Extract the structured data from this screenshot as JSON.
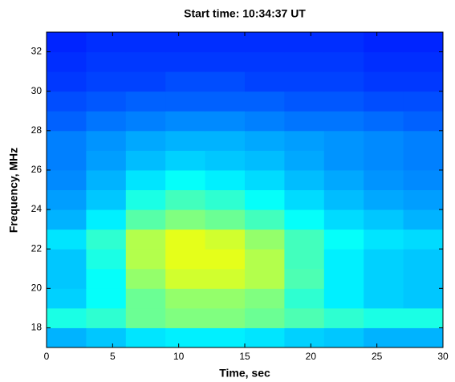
{
  "chart_data": {
    "type": "heatmap",
    "title": "Start time: 10:34:37 UT",
    "xlabel": "Time, sec",
    "ylabel": "Frequency, MHz",
    "colormap": "jet",
    "clim": [
      0,
      1
    ],
    "x_edges": [
      0,
      3,
      6,
      9,
      12,
      15,
      18,
      21,
      24,
      27,
      30
    ],
    "y_edges": [
      17,
      18,
      19,
      20,
      21,
      22,
      23,
      24,
      25,
      26,
      27,
      28,
      29,
      30,
      31,
      32,
      33
    ],
    "z": [
      [
        0.3,
        0.32,
        0.35,
        0.36,
        0.36,
        0.35,
        0.33,
        0.32,
        0.3,
        0.3
      ],
      [
        0.4,
        0.42,
        0.48,
        0.5,
        0.5,
        0.48,
        0.45,
        0.42,
        0.4,
        0.4
      ],
      [
        0.33,
        0.38,
        0.48,
        0.52,
        0.52,
        0.5,
        0.42,
        0.36,
        0.33,
        0.32
      ],
      [
        0.32,
        0.38,
        0.52,
        0.58,
        0.58,
        0.55,
        0.45,
        0.36,
        0.33,
        0.32
      ],
      [
        0.32,
        0.4,
        0.55,
        0.6,
        0.6,
        0.55,
        0.44,
        0.36,
        0.33,
        0.32
      ],
      [
        0.35,
        0.42,
        0.55,
        0.6,
        0.58,
        0.52,
        0.44,
        0.38,
        0.35,
        0.34
      ],
      [
        0.3,
        0.36,
        0.46,
        0.5,
        0.48,
        0.44,
        0.38,
        0.34,
        0.32,
        0.3
      ],
      [
        0.28,
        0.32,
        0.4,
        0.44,
        0.42,
        0.38,
        0.34,
        0.31,
        0.29,
        0.28
      ],
      [
        0.26,
        0.3,
        0.35,
        0.38,
        0.36,
        0.34,
        0.31,
        0.29,
        0.27,
        0.26
      ],
      [
        0.25,
        0.28,
        0.31,
        0.33,
        0.32,
        0.31,
        0.29,
        0.27,
        0.26,
        0.25
      ],
      [
        0.25,
        0.27,
        0.29,
        0.3,
        0.3,
        0.29,
        0.28,
        0.27,
        0.26,
        0.25
      ],
      [
        0.22,
        0.24,
        0.25,
        0.26,
        0.26,
        0.25,
        0.24,
        0.24,
        0.23,
        0.22
      ],
      [
        0.2,
        0.21,
        0.22,
        0.22,
        0.22,
        0.22,
        0.21,
        0.21,
        0.2,
        0.2
      ],
      [
        0.18,
        0.19,
        0.19,
        0.2,
        0.2,
        0.19,
        0.19,
        0.19,
        0.18,
        0.18
      ],
      [
        0.17,
        0.18,
        0.18,
        0.18,
        0.18,
        0.18,
        0.18,
        0.18,
        0.17,
        0.17
      ],
      [
        0.16,
        0.17,
        0.17,
        0.17,
        0.17,
        0.17,
        0.17,
        0.17,
        0.16,
        0.16
      ]
    ],
    "xlim": [
      0,
      30
    ],
    "xticks": [
      0,
      5,
      10,
      15,
      20,
      25,
      30
    ],
    "ylim": [
      17,
      33
    ],
    "yticks": [
      18,
      20,
      22,
      24,
      26,
      28,
      30,
      32
    ]
  }
}
